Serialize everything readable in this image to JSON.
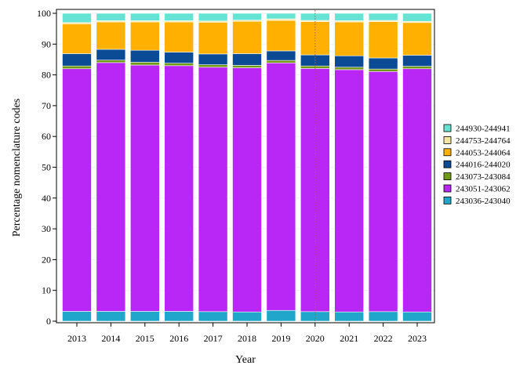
{
  "chart_data": {
    "type": "bar",
    "stacked": true,
    "title": "",
    "xlabel": "Year",
    "ylabel": "Percentage nomenclature codes",
    "ylim": [
      0,
      100
    ],
    "yticks": [
      0,
      10,
      20,
      30,
      40,
      50,
      60,
      70,
      80,
      90,
      100
    ],
    "categories": [
      "2013",
      "2014",
      "2015",
      "2016",
      "2017",
      "2018",
      "2019",
      "2020",
      "2021",
      "2022",
      "2023"
    ],
    "reference_line": {
      "x": "2020",
      "style": "dotted",
      "color": "#b85a5a"
    },
    "legend_position": "right",
    "series": [
      {
        "name": "243036-243040",
        "color": "#1fa6c9",
        "values": [
          3.2,
          3.2,
          3.2,
          3.2,
          3.1,
          3.0,
          3.5,
          3.1,
          3.0,
          3.1,
          3.0
        ]
      },
      {
        "name": "243051-243062",
        "color": "#b827f5",
        "values": [
          78.8,
          80.8,
          80.0,
          79.8,
          79.4,
          79.3,
          80.4,
          79.0,
          78.7,
          78.0,
          79.0
        ]
      },
      {
        "name": "243073-243084",
        "color": "#6f9a12",
        "values": [
          0.9,
          0.8,
          0.9,
          0.8,
          0.8,
          0.8,
          0.8,
          0.8,
          0.8,
          0.8,
          0.8
        ]
      },
      {
        "name": "244016-244020",
        "color": "#0b4b96",
        "values": [
          4.0,
          3.5,
          3.9,
          3.6,
          3.5,
          3.8,
          3.1,
          3.6,
          3.7,
          3.6,
          3.6
        ]
      },
      {
        "name": "244053-244064",
        "color": "#ffb000",
        "values": [
          9.7,
          8.9,
          9.2,
          9.8,
          10.3,
          10.5,
          9.9,
          10.8,
          11.0,
          11.8,
          10.6
        ]
      },
      {
        "name": "244753-244764",
        "color": "#f4e6a0",
        "values": [
          0.4,
          0.4,
          0.4,
          0.4,
          0.4,
          0.4,
          0.5,
          0.4,
          0.4,
          0.4,
          0.4
        ]
      },
      {
        "name": "244930-244941",
        "color": "#67e3d3",
        "values": [
          3.0,
          2.4,
          2.4,
          2.4,
          2.5,
          2.2,
          1.8,
          2.3,
          2.4,
          2.3,
          2.6
        ]
      }
    ]
  }
}
